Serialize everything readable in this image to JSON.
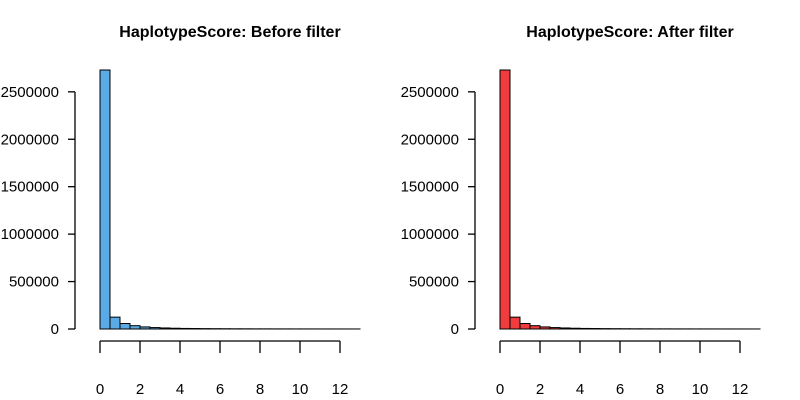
{
  "chart_data": [
    {
      "type": "bar",
      "title": "HaplotypeScore: Before filter",
      "bar_color": "#5aaae6",
      "bin_width": 0.5,
      "bin_starts": [
        0,
        0.5,
        1,
        1.5,
        2,
        2.5,
        3,
        3.5,
        4,
        4.5,
        5,
        5.5,
        6,
        6.5,
        7,
        7.5,
        8,
        8.5,
        9,
        9.5,
        10,
        10.5,
        11,
        11.5,
        12,
        12.5
      ],
      "values": [
        2730000,
        125000,
        58000,
        35000,
        22000,
        15000,
        11000,
        8000,
        6000,
        5000,
        4000,
        3300,
        2800,
        2300,
        2000,
        1700,
        1500,
        1300,
        1100,
        1000,
        900,
        800,
        700,
        600,
        500,
        450
      ],
      "xlim": [
        0,
        13
      ],
      "ylim": [
        0,
        2730000
      ],
      "xticks": [
        0,
        2,
        4,
        6,
        8,
        10,
        12
      ],
      "yticks": [
        0,
        500000,
        1000000,
        1500000,
        2000000,
        2500000
      ],
      "xtick_labels": [
        "0",
        "2",
        "4",
        "6",
        "8",
        "10",
        "12"
      ],
      "ytick_labels": [
        "0",
        "500000",
        "1000000",
        "1500000",
        "2000000",
        "2500000"
      ],
      "grid": false
    },
    {
      "type": "bar",
      "title": "HaplotypeScore: After filter",
      "bar_color": "#f03c3c",
      "bin_width": 0.5,
      "bin_starts": [
        0,
        0.5,
        1,
        1.5,
        2,
        2.5,
        3,
        3.5,
        4,
        4.5,
        5,
        5.5,
        6,
        6.5,
        7,
        7.5,
        8,
        8.5,
        9,
        9.5,
        10,
        10.5,
        11,
        11.5,
        12,
        12.5
      ],
      "values": [
        2730000,
        125000,
        58000,
        35000,
        22000,
        15000,
        11000,
        8000,
        6000,
        5000,
        4000,
        3300,
        2800,
        2300,
        2000,
        1700,
        1500,
        1300,
        1100,
        1000,
        900,
        800,
        700,
        600,
        500,
        450
      ],
      "xlim": [
        0,
        13
      ],
      "ylim": [
        0,
        2730000
      ],
      "xticks": [
        0,
        2,
        4,
        6,
        8,
        10,
        12
      ],
      "yticks": [
        0,
        500000,
        1000000,
        1500000,
        2000000,
        2500000
      ],
      "xtick_labels": [
        "0",
        "2",
        "4",
        "6",
        "8",
        "10",
        "12"
      ],
      "ytick_labels": [
        "0",
        "500000",
        "1000000",
        "1500000",
        "2000000",
        "2500000"
      ],
      "grid": false
    }
  ]
}
